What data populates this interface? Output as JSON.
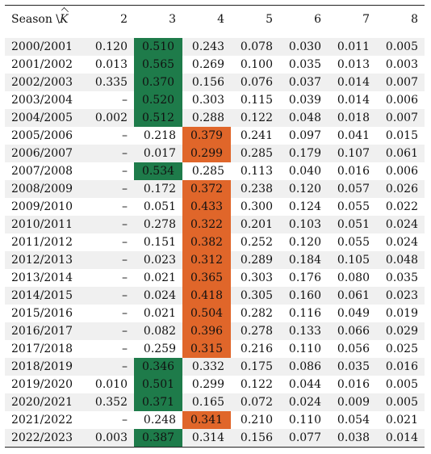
{
  "table": {
    "header": {
      "season_label": "Season \\",
      "k_symbol": "K",
      "columns": [
        "2",
        "3",
        "4",
        "5",
        "6",
        "7",
        "8"
      ]
    },
    "rows": [
      {
        "season": "2000/2001",
        "values": [
          "0.120",
          "0.510",
          "0.243",
          "0.078",
          "0.030",
          "0.011",
          "0.005"
        ],
        "highlight": {
          "col": 1,
          "color": "green"
        }
      },
      {
        "season": "2001/2002",
        "values": [
          "0.013",
          "0.565",
          "0.269",
          "0.100",
          "0.035",
          "0.013",
          "0.003"
        ],
        "highlight": {
          "col": 1,
          "color": "green"
        }
      },
      {
        "season": "2002/2003",
        "values": [
          "0.335",
          "0.370",
          "0.156",
          "0.076",
          "0.037",
          "0.014",
          "0.007"
        ],
        "highlight": {
          "col": 1,
          "color": "green"
        }
      },
      {
        "season": "2003/2004",
        "values": [
          "–",
          "0.520",
          "0.303",
          "0.115",
          "0.039",
          "0.014",
          "0.006"
        ],
        "highlight": {
          "col": 1,
          "color": "green"
        }
      },
      {
        "season": "2004/2005",
        "values": [
          "0.002",
          "0.512",
          "0.288",
          "0.122",
          "0.048",
          "0.018",
          "0.007"
        ],
        "highlight": {
          "col": 1,
          "color": "green"
        }
      },
      {
        "season": "2005/2006",
        "values": [
          "–",
          "0.218",
          "0.379",
          "0.241",
          "0.097",
          "0.041",
          "0.015"
        ],
        "highlight": {
          "col": 2,
          "color": "orange"
        }
      },
      {
        "season": "2006/2007",
        "values": [
          "–",
          "0.017",
          "0.299",
          "0.285",
          "0.179",
          "0.107",
          "0.061"
        ],
        "highlight": {
          "col": 2,
          "color": "orange"
        }
      },
      {
        "season": "2007/2008",
        "values": [
          "–",
          "0.534",
          "0.285",
          "0.113",
          "0.040",
          "0.016",
          "0.006"
        ],
        "highlight": {
          "col": 1,
          "color": "green"
        }
      },
      {
        "season": "2008/2009",
        "values": [
          "–",
          "0.172",
          "0.372",
          "0.238",
          "0.120",
          "0.057",
          "0.026"
        ],
        "highlight": {
          "col": 2,
          "color": "orange"
        }
      },
      {
        "season": "2009/2010",
        "values": [
          "–",
          "0.051",
          "0.433",
          "0.300",
          "0.124",
          "0.055",
          "0.022"
        ],
        "highlight": {
          "col": 2,
          "color": "orange"
        }
      },
      {
        "season": "2010/2011",
        "values": [
          "–",
          "0.278",
          "0.322",
          "0.201",
          "0.103",
          "0.051",
          "0.024"
        ],
        "highlight": {
          "col": 2,
          "color": "orange"
        }
      },
      {
        "season": "2011/2012",
        "values": [
          "–",
          "0.151",
          "0.382",
          "0.252",
          "0.120",
          "0.055",
          "0.024"
        ],
        "highlight": {
          "col": 2,
          "color": "orange"
        }
      },
      {
        "season": "2012/2013",
        "values": [
          "–",
          "0.023",
          "0.312",
          "0.289",
          "0.184",
          "0.105",
          "0.048"
        ],
        "highlight": {
          "col": 2,
          "color": "orange"
        }
      },
      {
        "season": "2013/2014",
        "values": [
          "–",
          "0.021",
          "0.365",
          "0.303",
          "0.176",
          "0.080",
          "0.035"
        ],
        "highlight": {
          "col": 2,
          "color": "orange"
        }
      },
      {
        "season": "2014/2015",
        "values": [
          "–",
          "0.024",
          "0.418",
          "0.305",
          "0.160",
          "0.061",
          "0.023"
        ],
        "highlight": {
          "col": 2,
          "color": "orange"
        }
      },
      {
        "season": "2015/2016",
        "values": [
          "–",
          "0.021",
          "0.504",
          "0.282",
          "0.116",
          "0.049",
          "0.019"
        ],
        "highlight": {
          "col": 2,
          "color": "orange"
        }
      },
      {
        "season": "2016/2017",
        "values": [
          "–",
          "0.082",
          "0.396",
          "0.278",
          "0.133",
          "0.066",
          "0.029"
        ],
        "highlight": {
          "col": 2,
          "color": "orange"
        }
      },
      {
        "season": "2017/2018",
        "values": [
          "–",
          "0.259",
          "0.315",
          "0.216",
          "0.110",
          "0.056",
          "0.025"
        ],
        "highlight": {
          "col": 2,
          "color": "orange"
        }
      },
      {
        "season": "2018/2019",
        "values": [
          "–",
          "0.346",
          "0.332",
          "0.175",
          "0.086",
          "0.035",
          "0.016"
        ],
        "highlight": {
          "col": 1,
          "color": "green"
        }
      },
      {
        "season": "2019/2020",
        "values": [
          "0.010",
          "0.501",
          "0.299",
          "0.122",
          "0.044",
          "0.016",
          "0.005"
        ],
        "highlight": {
          "col": 1,
          "color": "green"
        }
      },
      {
        "season": "2020/2021",
        "values": [
          "0.352",
          "0.371",
          "0.165",
          "0.072",
          "0.024",
          "0.009",
          "0.005"
        ],
        "highlight": {
          "col": 1,
          "color": "green"
        }
      },
      {
        "season": "2021/2022",
        "values": [
          "–",
          "0.248",
          "0.341",
          "0.210",
          "0.110",
          "0.054",
          "0.021"
        ],
        "highlight": {
          "col": 2,
          "color": "orange"
        }
      },
      {
        "season": "2022/2023",
        "values": [
          "0.003",
          "0.387",
          "0.314",
          "0.156",
          "0.077",
          "0.038",
          "0.014"
        ],
        "highlight": {
          "col": 1,
          "color": "green"
        }
      }
    ]
  },
  "colors": {
    "green": "#1e7b4a",
    "orange": "#e0662a",
    "row_stripe": "#f0f0f0"
  }
}
